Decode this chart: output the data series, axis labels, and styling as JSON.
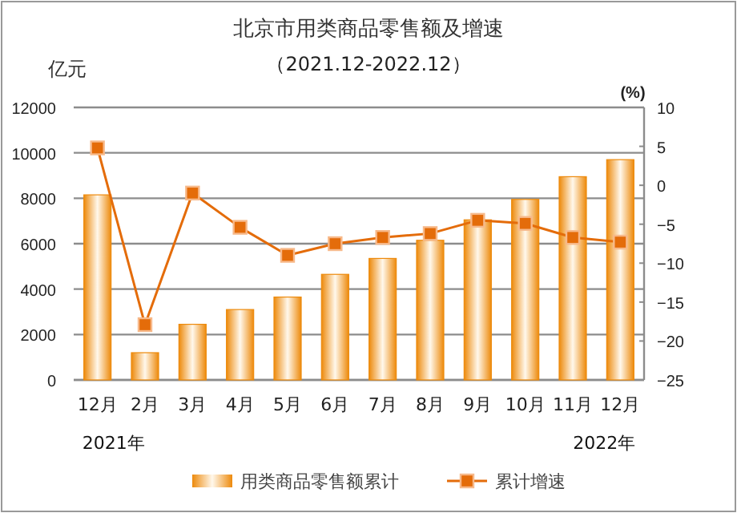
{
  "chart_data": {
    "type": "bar",
    "title": "北京市用类商品零售额及增速",
    "subtitle": "（2021.12-2022.12）",
    "ylabel": "亿元",
    "y2label": "(%)",
    "categories": [
      "12月",
      "2月",
      "3月",
      "4月",
      "5月",
      "6月",
      "7月",
      "8月",
      "9月",
      "10月",
      "11月",
      "12月"
    ],
    "series": [
      {
        "name": "用类商品零售额累计",
        "color": "#ed8a0c",
        "values": [
          8150,
          1200,
          2450,
          3100,
          3650,
          4650,
          5350,
          6150,
          7050,
          7950,
          8950,
          9700
        ]
      },
      {
        "name": "累计增速",
        "type": "line",
        "axis": "y2",
        "color": "#e46c0a",
        "marker": "square",
        "values": [
          4.8,
          -17.9,
          -1.0,
          -5.4,
          -9.0,
          -7.5,
          -6.7,
          -6.2,
          -4.5,
          -4.9,
          -6.7,
          -7.3
        ]
      }
    ],
    "ylim": [
      0,
      12000
    ],
    "yticks": [
      0,
      2000,
      4000,
      6000,
      8000,
      10000,
      12000
    ],
    "y2lim": [
      -25,
      10
    ],
    "y2ticks": [
      -25,
      -20,
      -15,
      -10,
      -5,
      0,
      5,
      10
    ],
    "grid": "y",
    "legend": "bottom",
    "annotations": [
      "2021年",
      "2022年"
    ]
  }
}
